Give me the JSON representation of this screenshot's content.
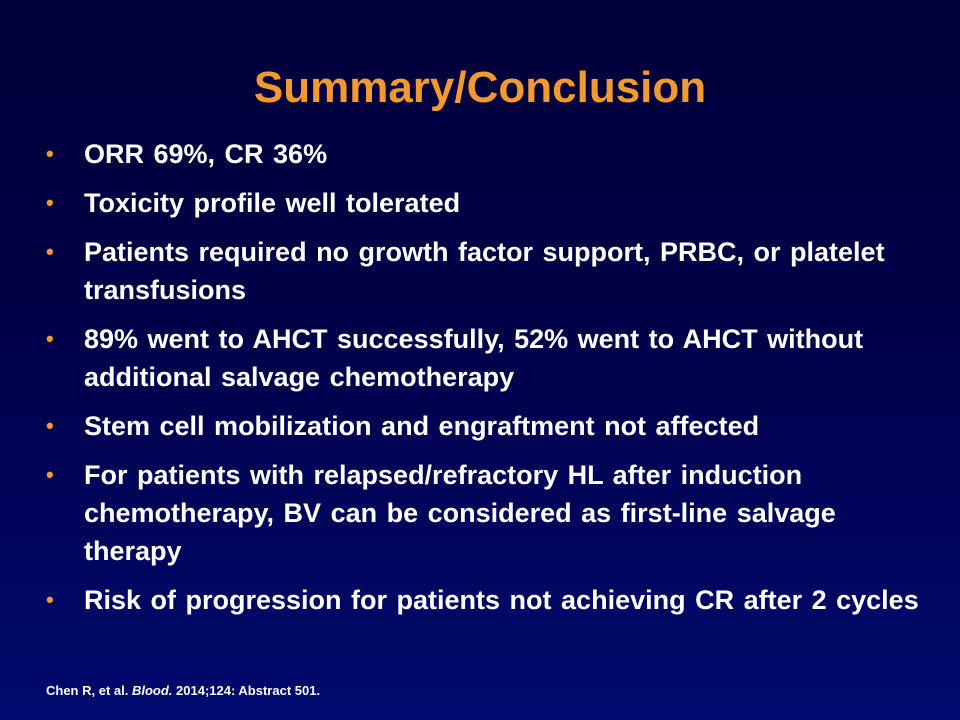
{
  "slide": {
    "title": "Summary/Conclusion",
    "bullet_marker": "•",
    "bullets": [
      "ORR 69%, CR 36%",
      "Toxicity profile well tolerated",
      "Patients required no growth factor support, PRBC, or platelet transfusions",
      "89% went to AHCT successfully, 52% went to AHCT without additional salvage chemotherapy",
      "Stem cell mobilization and engraftment not affected",
      "For patients with relapsed/refractory HL after induction chemotherapy, BV can be considered as first-line salvage therapy",
      "Risk of progression for patients not achieving CR after 2 cycles"
    ],
    "citation": {
      "authors": "Chen R, et al. ",
      "journal": "Blood.",
      "details": " 2014;124: Abstract 501."
    }
  },
  "colors": {
    "background_top": "#000039",
    "background_bottom": "#000a6e",
    "title": "#f29a2e",
    "bullet_marker": "#f29a2e",
    "text": "#ffffff"
  }
}
